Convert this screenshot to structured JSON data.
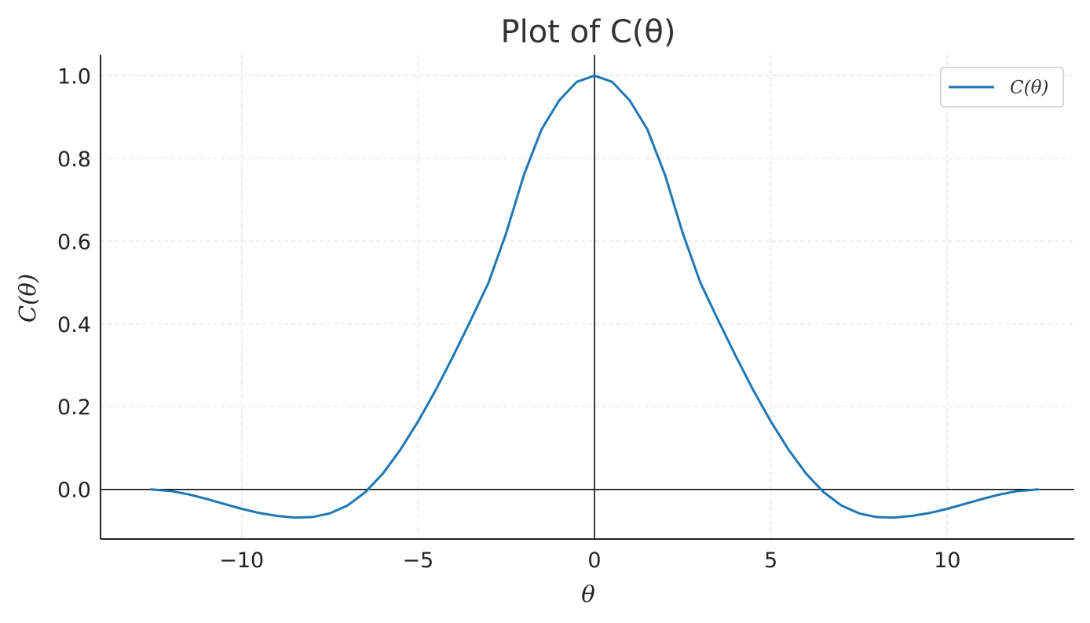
{
  "chart_data": {
    "type": "line",
    "title": "Plot of C(θ)",
    "xlabel": "θ",
    "ylabel": "C(θ)",
    "xlim": [
      -14,
      13.6
    ],
    "ylim": [
      -0.12,
      1.05
    ],
    "xticks": [
      -10,
      -5,
      0,
      5,
      10
    ],
    "xtick_labels": [
      "−10",
      "−5",
      "0",
      "5",
      "10"
    ],
    "yticks": [
      0.0,
      0.2,
      0.4,
      0.6,
      0.8,
      1.0
    ],
    "ytick_labels": [
      "0.0",
      "0.2",
      "0.4",
      "0.6",
      "0.8",
      "1.0"
    ],
    "grid": true,
    "legend_position": "top-right",
    "colors": {
      "series": "#1f77b4",
      "axes": "#000000",
      "grid": "#dddddd"
    },
    "series": [
      {
        "name": "C(θ)",
        "x": [
          -12.57,
          -12,
          -11.5,
          -11,
          -10.5,
          -10,
          -9.5,
          -9,
          -8.5,
          -8,
          -7.5,
          -7,
          -6.5,
          -6,
          -5.5,
          -5,
          -4.5,
          -4,
          -3.5,
          -3,
          -2.5,
          -2,
          -1.5,
          -1,
          -0.5,
          0,
          0.5,
          1,
          1.5,
          2,
          2.5,
          3,
          3.5,
          4,
          4.5,
          5,
          5.5,
          6,
          6.5,
          7,
          7.5,
          8,
          8.5,
          9,
          9.5,
          10,
          10.5,
          11,
          11.5,
          12,
          12.57
        ],
        "y": [
          0.0,
          -0.004,
          -0.012,
          -0.023,
          -0.035,
          -0.047,
          -0.057,
          -0.064,
          -0.068,
          -0.067,
          -0.058,
          -0.039,
          -0.007,
          0.038,
          0.096,
          0.164,
          0.24,
          0.323,
          0.41,
          0.5,
          0.62,
          0.76,
          0.87,
          0.94,
          0.985,
          1.0,
          0.985,
          0.94,
          0.87,
          0.76,
          0.62,
          0.5,
          0.41,
          0.323,
          0.24,
          0.164,
          0.096,
          0.038,
          -0.007,
          -0.039,
          -0.058,
          -0.067,
          -0.068,
          -0.064,
          -0.057,
          -0.047,
          -0.035,
          -0.023,
          -0.012,
          -0.004,
          0.0
        ]
      }
    ]
  }
}
